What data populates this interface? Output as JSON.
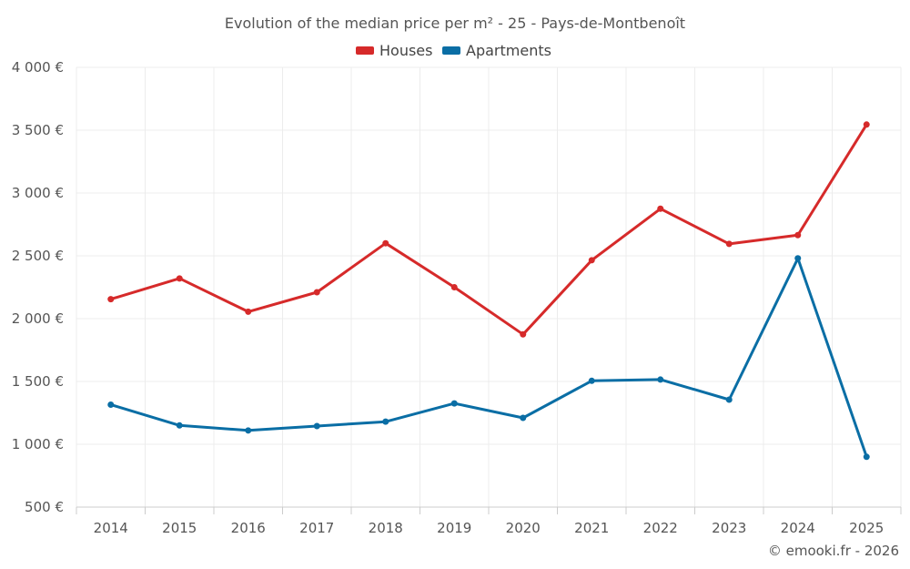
{
  "chart_data": {
    "type": "line",
    "title": "Evolution of the median price per m² - 25 - Pays-de-Montbenoît",
    "categories": [
      "2014",
      "2015",
      "2016",
      "2017",
      "2018",
      "2019",
      "2020",
      "2021",
      "2022",
      "2023",
      "2024",
      "2025"
    ],
    "series": [
      {
        "name": "Houses",
        "color": "#d62a2a",
        "values": [
          2155,
          2320,
          2055,
          2210,
          2600,
          2250,
          1875,
          2465,
          2875,
          2595,
          2665,
          3545
        ]
      },
      {
        "name": "Apartments",
        "color": "#0a6ea5",
        "values": [
          1315,
          1150,
          1110,
          1145,
          1180,
          1325,
          1210,
          1505,
          1515,
          1355,
          2480,
          900
        ]
      }
    ],
    "ylim": [
      500,
      4000
    ],
    "yticks": [
      500,
      1000,
      1500,
      2000,
      2500,
      3000,
      3500,
      4000
    ],
    "ytick_labels": [
      "500 €",
      "1 000 €",
      "1 500 €",
      "2 000 €",
      "2 500 €",
      "3 000 €",
      "3 500 €",
      "4 000 €"
    ],
    "grid": true,
    "legend": "top-center"
  },
  "credit": "© emooki.fr - 2026"
}
